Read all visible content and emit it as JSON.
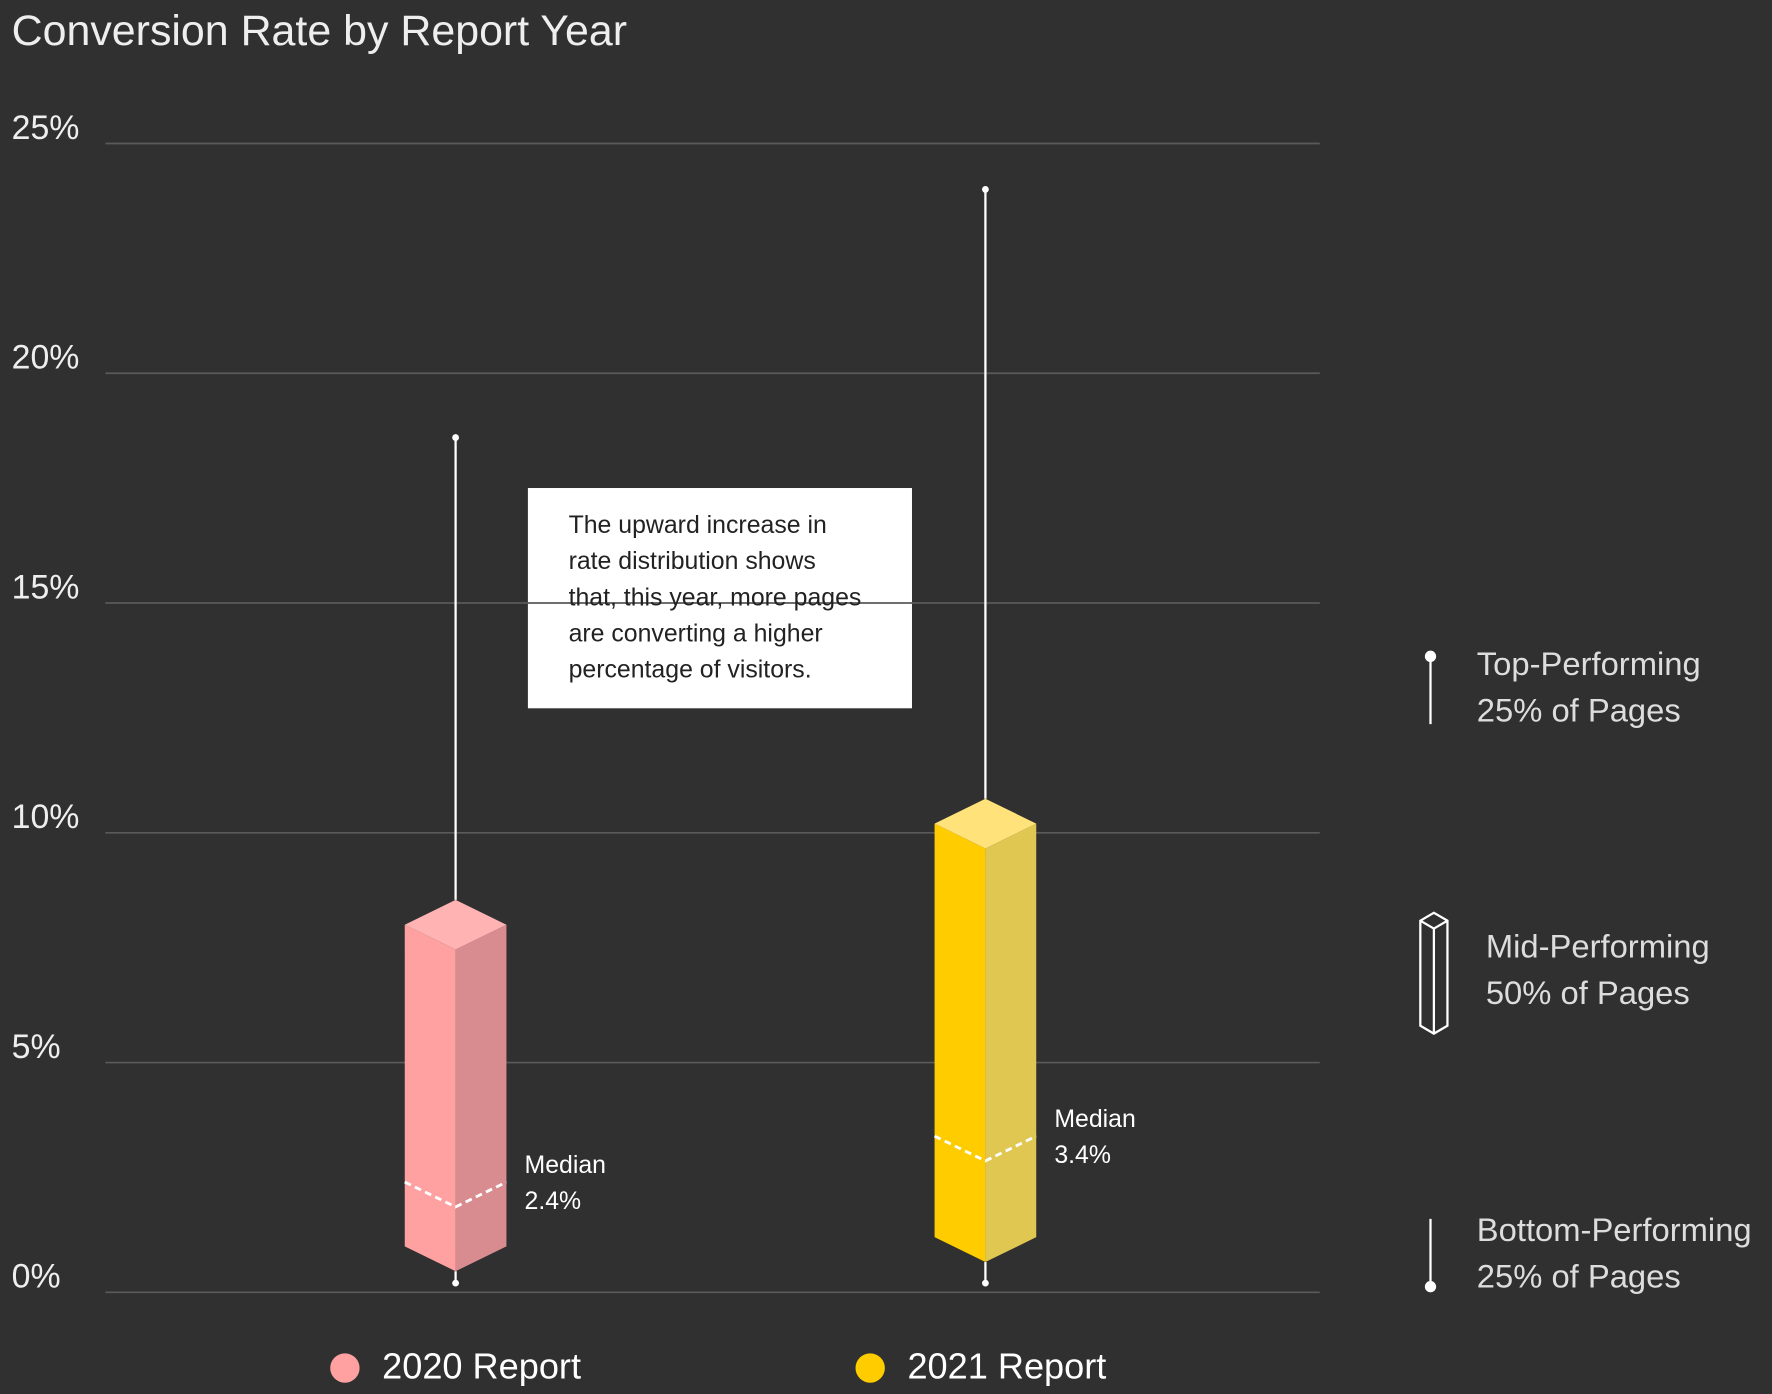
{
  "chart_data": {
    "type": "box",
    "title": "Conversion Rate by Report Year",
    "ylim": [
      0,
      25
    ],
    "yticks": [
      {
        "value": 0,
        "label": "0%"
      },
      {
        "value": 5,
        "label": "5%"
      },
      {
        "value": 10,
        "label": "10%"
      },
      {
        "value": 15,
        "label": "15%"
      },
      {
        "value": 20,
        "label": "20%"
      },
      {
        "value": 25,
        "label": "25%"
      }
    ],
    "grid": true,
    "median_text": "Median",
    "series": [
      {
        "name": "2020 Report",
        "color": "#ffa1a1",
        "shade_color": "#d98c8f",
        "top_color": "#ffb3b3",
        "min": 0.2,
        "q1": 1,
        "median": 2.4,
        "q3": 8,
        "max": 18.6,
        "median_label": "2.4%"
      },
      {
        "name": "2021 Report",
        "color": "#ffcc00",
        "shade_color": "#e0c752",
        "top_color": "#ffe27a",
        "min": 0.2,
        "q1": 1.2,
        "median": 3.4,
        "q3": 10.2,
        "max": 24,
        "median_label": "3.4%"
      }
    ],
    "annotation": [
      "The upward increase in",
      "rate distribution shows",
      "that, this year, more pages",
      "are converting a higher",
      "percentage of visitors."
    ],
    "key": [
      {
        "title": "Top-Performing",
        "subtitle": "25% of Pages"
      },
      {
        "title": "Mid-Performing",
        "subtitle": "50% of Pages"
      },
      {
        "title": "Bottom-Performing",
        "subtitle": "25% of Pages"
      }
    ]
  }
}
